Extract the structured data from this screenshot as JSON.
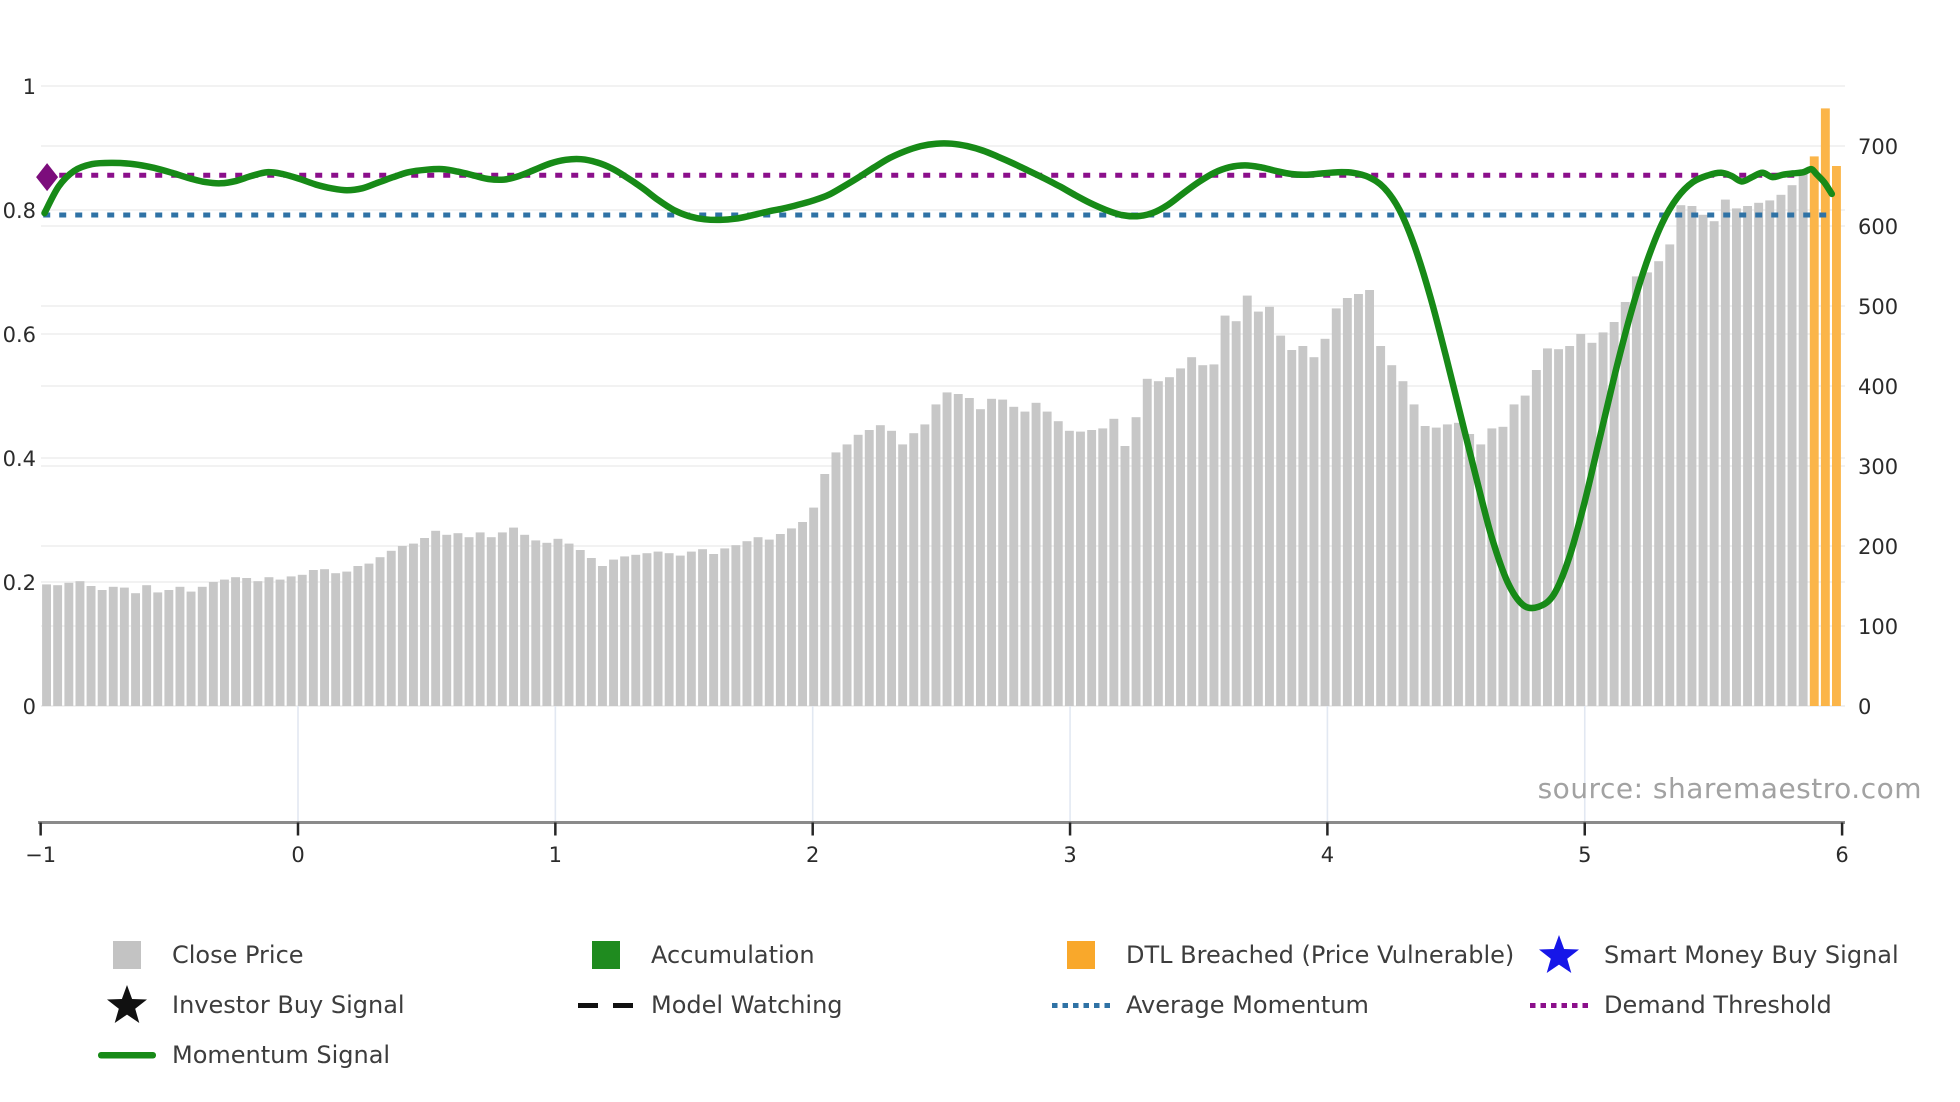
{
  "source_credit": "source: sharemaestro.com",
  "colors": {
    "close_price_bar": "#c7c7c7",
    "dtl_breached_bar": "#fbb549",
    "momentum_line": "#178a17",
    "average_momentum": "#2f72a5",
    "demand_threshold": "#8b0f8b",
    "investor_star": "#111111",
    "smart_money_star": "#1616e8",
    "legend_close_square": "#c3c3c3",
    "legend_accumulation_square": "#1f8b1f",
    "legend_dtl_square": "#f9a82b",
    "axis_spine": "#8a8a8a",
    "tick_text": "#2b2b2b",
    "grid_h": "#ededed",
    "grid_v": "#e2e8f2"
  },
  "chart_data": {
    "type": "bar+line",
    "title": "",
    "source": "source: sharemaestro.com",
    "x_axis": {
      "tick_labels": [
        "−1",
        "0",
        "1",
        "2",
        "3",
        "4",
        "5",
        "6"
      ],
      "tick_values": [
        -1,
        0,
        1,
        2,
        3,
        4,
        5,
        6
      ],
      "range": [
        -1.02,
        6.02
      ]
    },
    "left_axis": {
      "tick_labels": [
        "0",
        "0.2",
        "0.4",
        "0.6",
        "0.8",
        "1"
      ],
      "tick_values": [
        0,
        0.2,
        0.4,
        0.6,
        0.8,
        1
      ],
      "range": [
        0,
        1
      ]
    },
    "right_axis": {
      "tick_labels": [
        "0",
        "100",
        "200",
        "300",
        "400",
        "500",
        "600",
        "700"
      ],
      "tick_values": [
        0,
        100,
        200,
        300,
        400,
        500,
        600,
        700
      ],
      "range": [
        0,
        750
      ]
    },
    "bars": {
      "name": "Close Price",
      "axis": "right",
      "x_start": -0.977,
      "x_step": 0.0432,
      "breached_last_n": 3,
      "values": [
        152,
        151,
        154,
        156,
        150,
        145,
        149,
        148,
        141,
        151,
        142,
        145,
        149,
        143,
        149,
        155,
        158,
        161,
        160,
        156,
        161,
        158,
        162,
        164,
        170,
        171,
        166,
        168,
        175,
        178,
        186,
        194,
        200,
        203,
        210,
        219,
        214,
        216,
        211,
        217,
        211,
        217,
        223,
        214,
        207,
        204,
        209,
        203,
        195,
        185,
        175,
        183,
        187,
        189,
        191,
        193,
        191,
        188,
        193,
        196,
        190,
        197,
        201,
        206,
        211,
        208,
        215,
        222,
        230,
        248,
        290,
        317,
        327,
        339,
        345,
        351,
        344,
        327,
        341,
        352,
        377,
        392,
        390,
        385,
        371,
        384,
        383,
        374,
        368,
        379,
        368,
        356,
        344,
        343,
        345,
        347,
        359,
        325,
        361,
        409,
        406,
        411,
        422,
        436,
        426,
        427,
        488,
        481,
        513,
        493,
        499,
        463,
        445,
        450,
        436,
        459,
        497,
        510,
        515,
        520,
        450,
        426,
        406,
        377,
        350,
        348,
        352,
        354,
        340,
        327,
        347,
        349,
        377,
        388,
        420,
        447,
        446,
        450,
        465,
        454,
        467,
        480,
        505,
        537,
        542,
        556,
        577,
        626,
        625,
        614,
        606,
        633,
        622,
        625,
        629,
        632,
        639,
        651,
        666,
        687,
        747,
        675
      ]
    },
    "momentum": {
      "name": "Momentum Signal",
      "axis": "left",
      "points": [
        [
          -0.985,
          0.795
        ],
        [
          -0.93,
          0.838
        ],
        [
          -0.87,
          0.863
        ],
        [
          -0.8,
          0.874
        ],
        [
          -0.72,
          0.876
        ],
        [
          -0.64,
          0.874
        ],
        [
          -0.56,
          0.868
        ],
        [
          -0.49,
          0.86
        ],
        [
          -0.42,
          0.851
        ],
        [
          -0.36,
          0.845
        ],
        [
          -0.3,
          0.843
        ],
        [
          -0.24,
          0.847
        ],
        [
          -0.18,
          0.855
        ],
        [
          -0.12,
          0.861
        ],
        [
          -0.06,
          0.858
        ],
        [
          0.0,
          0.851
        ],
        [
          0.07,
          0.841
        ],
        [
          0.13,
          0.835
        ],
        [
          0.19,
          0.832
        ],
        [
          0.25,
          0.835
        ],
        [
          0.31,
          0.844
        ],
        [
          0.37,
          0.853
        ],
        [
          0.43,
          0.861
        ],
        [
          0.5,
          0.865
        ],
        [
          0.56,
          0.866
        ],
        [
          0.62,
          0.862
        ],
        [
          0.68,
          0.856
        ],
        [
          0.74,
          0.85
        ],
        [
          0.8,
          0.849
        ],
        [
          0.86,
          0.855
        ],
        [
          0.92,
          0.865
        ],
        [
          0.98,
          0.875
        ],
        [
          1.04,
          0.881
        ],
        [
          1.1,
          0.882
        ],
        [
          1.16,
          0.877
        ],
        [
          1.22,
          0.867
        ],
        [
          1.28,
          0.852
        ],
        [
          1.34,
          0.835
        ],
        [
          1.4,
          0.816
        ],
        [
          1.46,
          0.8
        ],
        [
          1.52,
          0.79
        ],
        [
          1.58,
          0.785
        ],
        [
          1.64,
          0.784
        ],
        [
          1.7,
          0.786
        ],
        [
          1.76,
          0.791
        ],
        [
          1.82,
          0.797
        ],
        [
          1.88,
          0.802
        ],
        [
          1.94,
          0.808
        ],
        [
          2.0,
          0.815
        ],
        [
          2.06,
          0.824
        ],
        [
          2.12,
          0.838
        ],
        [
          2.18,
          0.853
        ],
        [
          2.24,
          0.869
        ],
        [
          2.3,
          0.884
        ],
        [
          2.36,
          0.895
        ],
        [
          2.42,
          0.903
        ],
        [
          2.48,
          0.907
        ],
        [
          2.54,
          0.907
        ],
        [
          2.6,
          0.903
        ],
        [
          2.66,
          0.896
        ],
        [
          2.72,
          0.886
        ],
        [
          2.78,
          0.875
        ],
        [
          2.84,
          0.863
        ],
        [
          2.9,
          0.851
        ],
        [
          2.96,
          0.838
        ],
        [
          3.02,
          0.824
        ],
        [
          3.08,
          0.811
        ],
        [
          3.14,
          0.8
        ],
        [
          3.2,
          0.792
        ],
        [
          3.26,
          0.79
        ],
        [
          3.32,
          0.795
        ],
        [
          3.38,
          0.808
        ],
        [
          3.44,
          0.827
        ],
        [
          3.5,
          0.845
        ],
        [
          3.56,
          0.86
        ],
        [
          3.62,
          0.869
        ],
        [
          3.68,
          0.872
        ],
        [
          3.74,
          0.869
        ],
        [
          3.8,
          0.863
        ],
        [
          3.86,
          0.858
        ],
        [
          3.92,
          0.857
        ],
        [
          3.98,
          0.859
        ],
        [
          4.04,
          0.861
        ],
        [
          4.1,
          0.86
        ],
        [
          4.16,
          0.853
        ],
        [
          4.22,
          0.836
        ],
        [
          4.28,
          0.8
        ],
        [
          4.34,
          0.74
        ],
        [
          4.4,
          0.66
        ],
        [
          4.46,
          0.565
        ],
        [
          4.52,
          0.465
        ],
        [
          4.58,
          0.365
        ],
        [
          4.64,
          0.27
        ],
        [
          4.7,
          0.2
        ],
        [
          4.76,
          0.163
        ],
        [
          4.82,
          0.16
        ],
        [
          4.88,
          0.18
        ],
        [
          4.94,
          0.24
        ],
        [
          5.0,
          0.33
        ],
        [
          5.06,
          0.435
        ],
        [
          5.12,
          0.54
        ],
        [
          5.18,
          0.635
        ],
        [
          5.24,
          0.715
        ],
        [
          5.3,
          0.778
        ],
        [
          5.36,
          0.82
        ],
        [
          5.42,
          0.845
        ],
        [
          5.48,
          0.856
        ],
        [
          5.53,
          0.86
        ],
        [
          5.57,
          0.855
        ],
        [
          5.61,
          0.846
        ],
        [
          5.65,
          0.853
        ],
        [
          5.69,
          0.86
        ],
        [
          5.73,
          0.853
        ],
        [
          5.77,
          0.857
        ],
        [
          5.81,
          0.859
        ],
        [
          5.85,
          0.861
        ],
        [
          5.88,
          0.866
        ],
        [
          5.9,
          0.858
        ],
        [
          5.93,
          0.845
        ],
        [
          5.96,
          0.826
        ]
      ]
    },
    "average_momentum": {
      "name": "Average Momentum",
      "value": 0.792,
      "x_start": -0.99,
      "x_end": 5.95
    },
    "demand_threshold": {
      "name": "Demand Threshold",
      "value": 0.856,
      "x_start": -0.99,
      "x_end": 5.84,
      "start_marker": {
        "x": -0.975,
        "y": 0.853,
        "shape": "diamond"
      }
    }
  },
  "legend": {
    "columns": [
      {
        "rows": [
          {
            "marker": "square",
            "color_key": "legend_close_square",
            "label": "Close Price"
          },
          {
            "marker": "star",
            "color_key": "investor_star",
            "label": "Investor Buy Signal"
          },
          {
            "marker": "line",
            "color_key": "momentum_line",
            "label": "Momentum Signal"
          }
        ]
      },
      {
        "rows": [
          {
            "marker": "square",
            "color_key": "legend_accumulation_square",
            "label": "Accumulation"
          },
          {
            "marker": "dashes",
            "color_key": "investor_star",
            "label": "Model Watching"
          }
        ]
      },
      {
        "rows": [
          {
            "marker": "square",
            "color_key": "legend_dtl_square",
            "label": "DTL Breached (Price Vulnerable)"
          },
          {
            "marker": "dots",
            "color_key": "average_momentum",
            "label": "Average Momentum"
          }
        ]
      },
      {
        "rows": [
          {
            "marker": "star",
            "color_key": "smart_money_star",
            "label": "Smart Money Buy Signal"
          },
          {
            "marker": "dots",
            "color_key": "demand_threshold",
            "label": "Demand Threshold"
          }
        ]
      }
    ]
  }
}
